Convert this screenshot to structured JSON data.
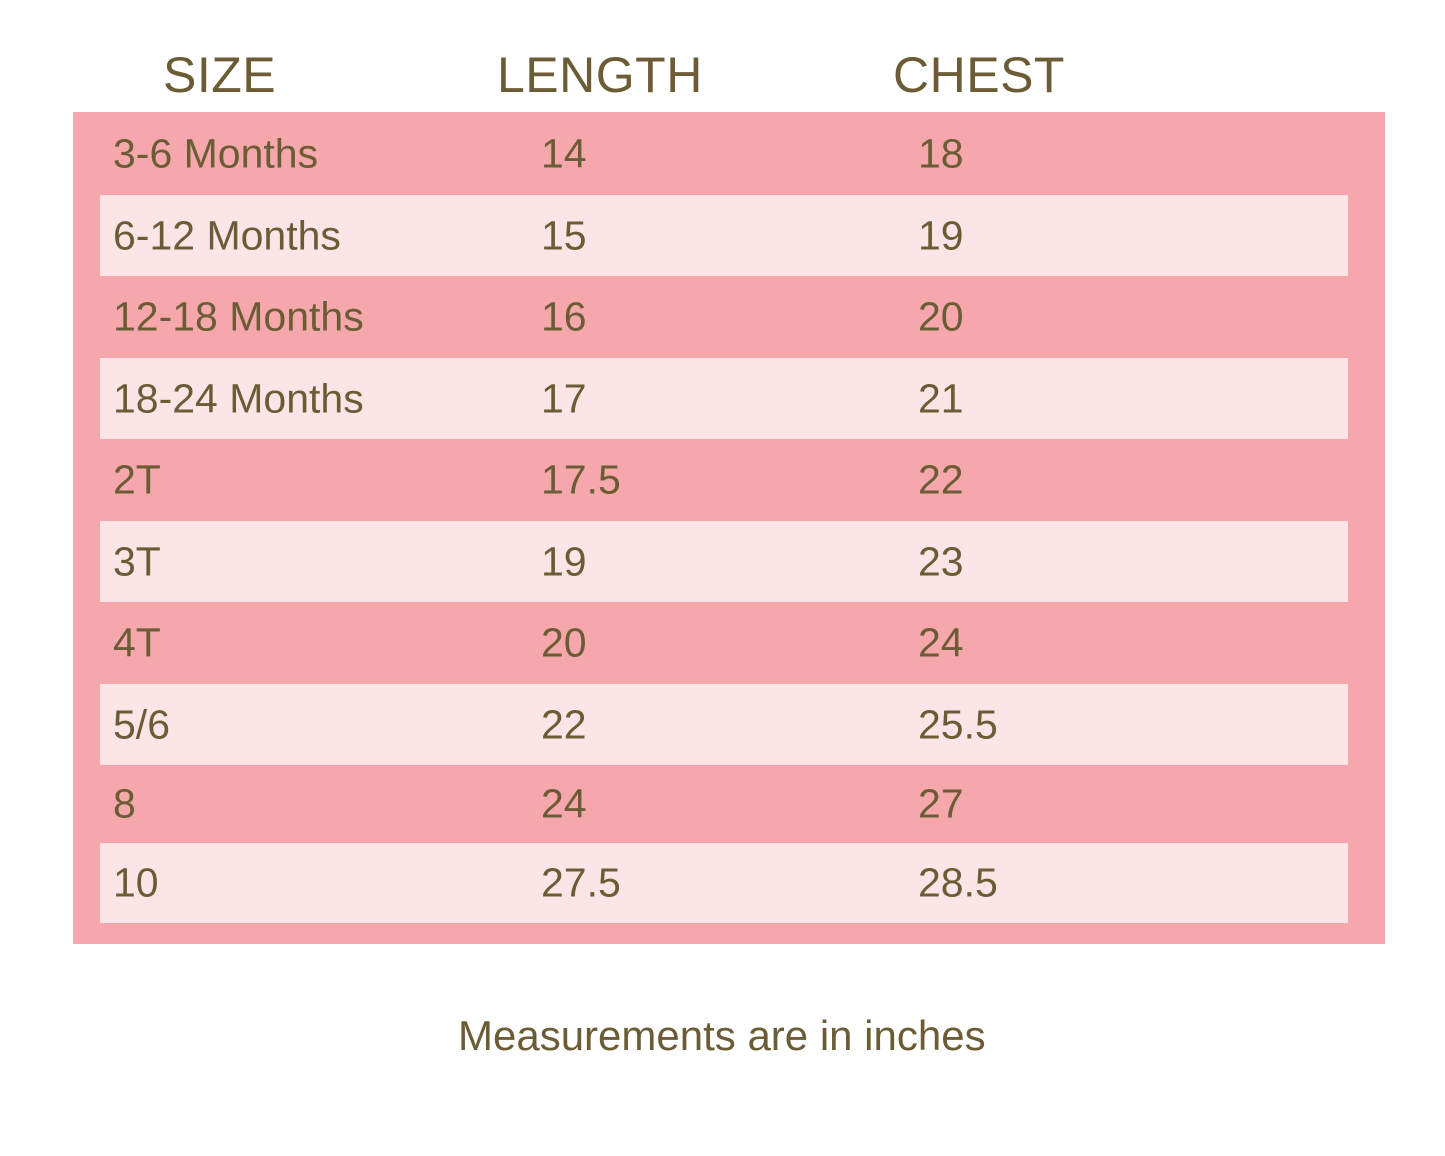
{
  "headers": {
    "size": "SIZE",
    "length": "LENGTH",
    "chest": "CHEST"
  },
  "colors": {
    "text": "#6b5c35",
    "row_dark": "#f5a7ab",
    "row_light": "#fde4e6"
  },
  "rows": [
    {
      "size": "3-6 Months",
      "length": "14",
      "chest": "18"
    },
    {
      "size": "6-12 Months",
      "length": "15",
      "chest": "19"
    },
    {
      "size": "12-18 Months",
      "length": "16",
      "chest": "20"
    },
    {
      "size": "18-24 Months",
      "length": "17",
      "chest": "21"
    },
    {
      "size": "2T",
      "length": "17.5",
      "chest": "22"
    },
    {
      "size": "3T",
      "length": "19",
      "chest": "23"
    },
    {
      "size": "4T",
      "length": "20",
      "chest": "24"
    },
    {
      "size": "5/6",
      "length": "22",
      "chest": "25.5"
    },
    {
      "size": "8",
      "length": "24",
      "chest": "27"
    },
    {
      "size": "10",
      "length": "27.5",
      "chest": "28.5"
    }
  ],
  "footnote": "Measurements are in inches"
}
